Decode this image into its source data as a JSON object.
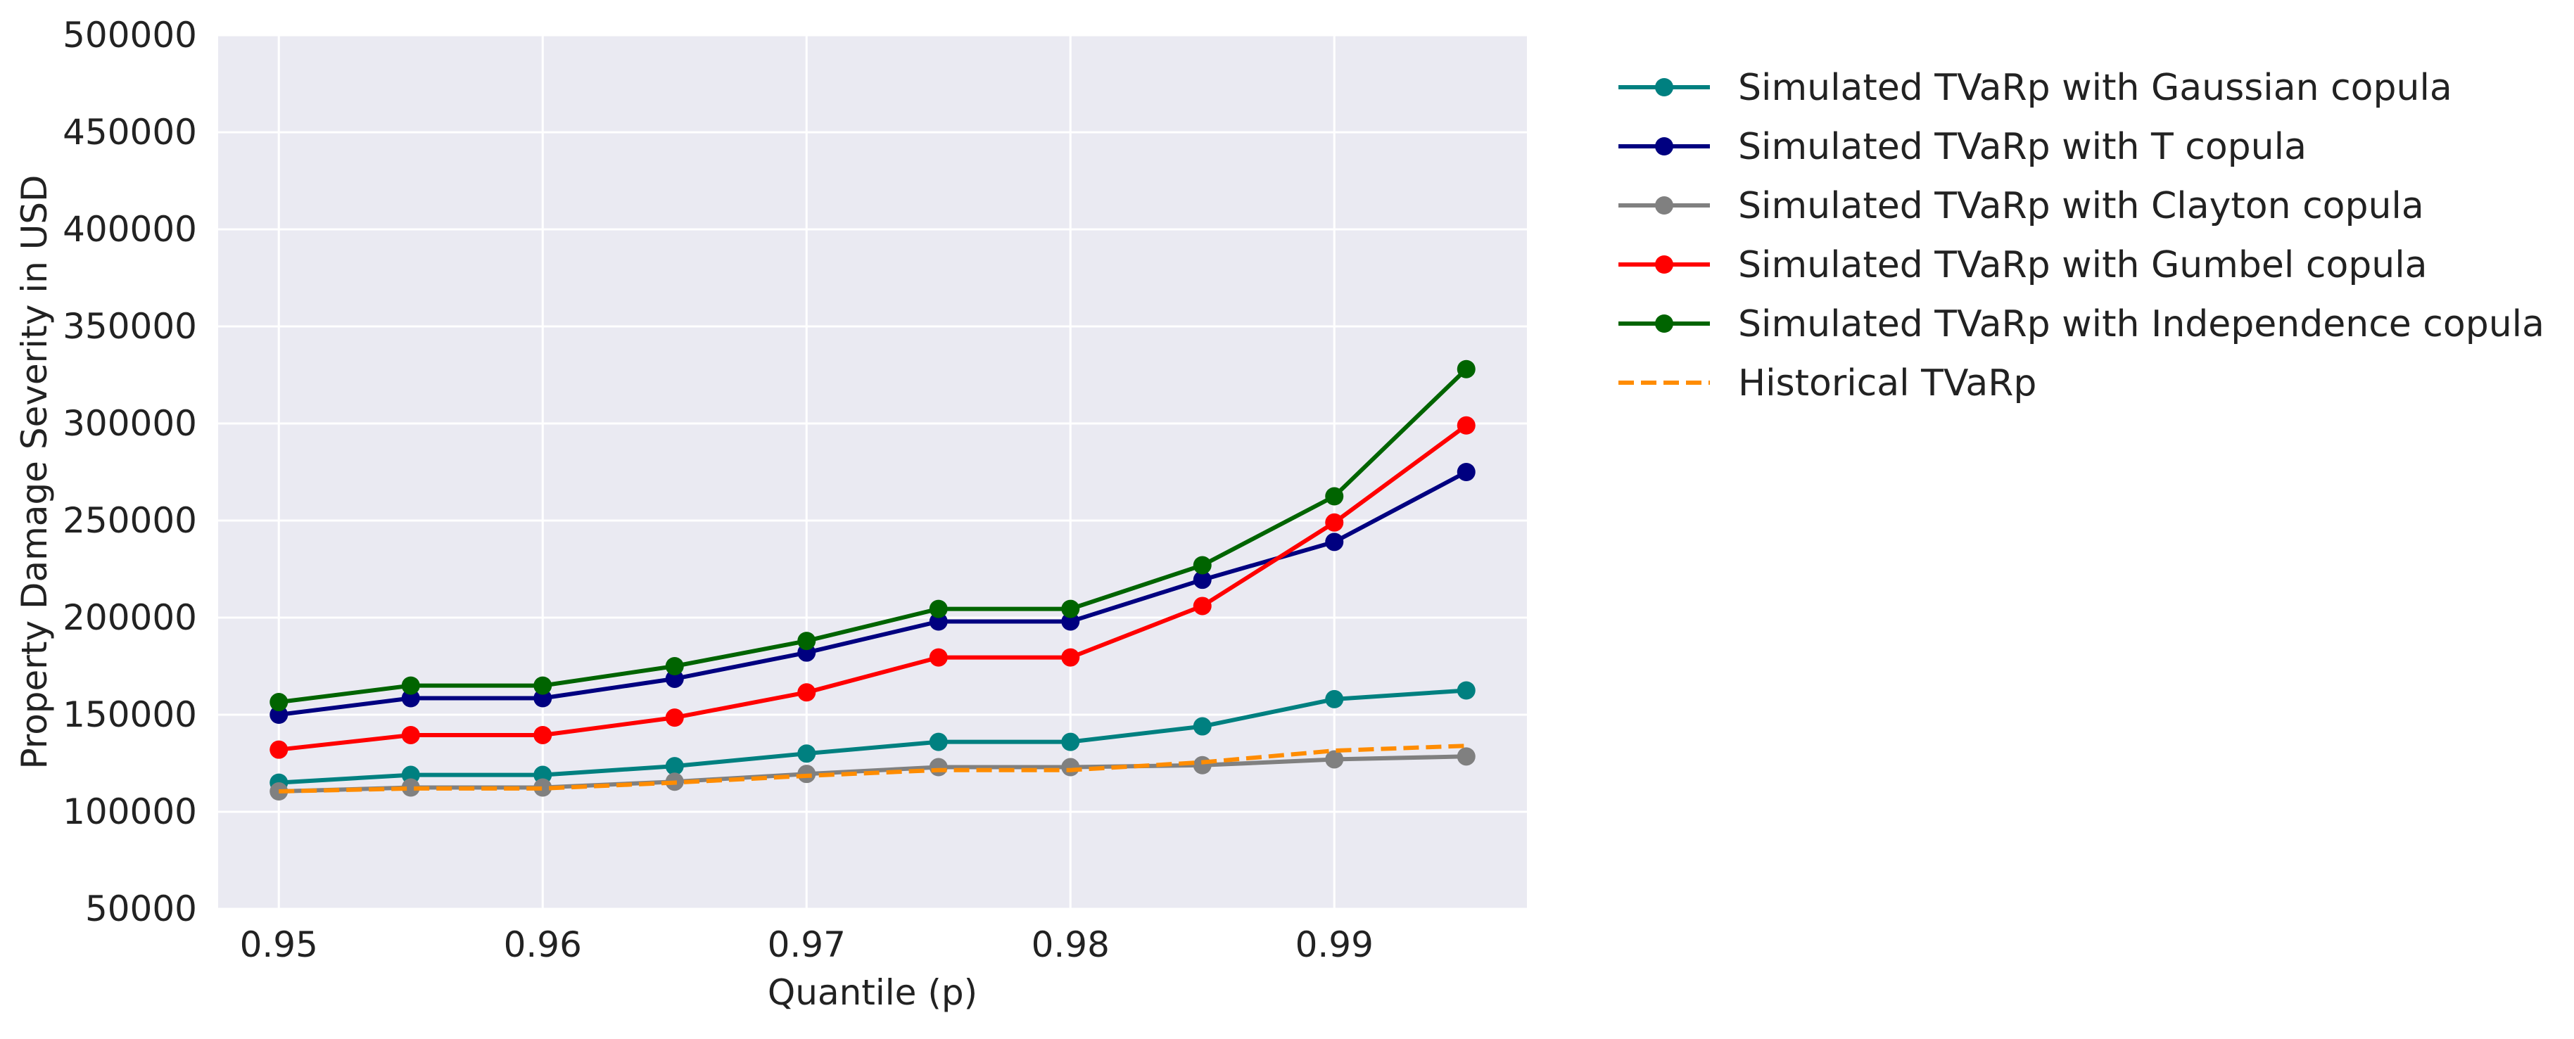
{
  "chart_data": {
    "type": "line",
    "title": "",
    "xlabel": "Quantile (p)",
    "ylabel": "Property Damage Severity in USD",
    "xlim": [
      0.9477,
      0.9973
    ],
    "ylim": [
      50000,
      500000
    ],
    "xticks": [
      0.95,
      0.96,
      0.97,
      0.98,
      0.99
    ],
    "xtick_labels": [
      "0.95",
      "0.96",
      "0.97",
      "0.98",
      "0.99"
    ],
    "yticks": [
      50000,
      100000,
      150000,
      200000,
      250000,
      300000,
      350000,
      400000,
      450000,
      500000
    ],
    "ytick_labels": [
      "50000",
      "100000",
      "150000",
      "200000",
      "250000",
      "300000",
      "350000",
      "400000",
      "450000",
      "500000"
    ],
    "grid": true,
    "legend_position": "outside-right",
    "x": [
      0.95,
      0.955,
      0.96,
      0.965,
      0.97,
      0.975,
      0.98,
      0.985,
      0.99,
      0.995
    ],
    "series": [
      {
        "name": "Simulated TVaRp with Gaussian copula",
        "color": "#008080",
        "style": "solid",
        "markers": true,
        "values": [
          115000,
          119000,
          119000,
          123500,
          130000,
          136000,
          136000,
          144000,
          158000,
          162500
        ]
      },
      {
        "name": "Simulated TVaRp with T copula",
        "color": "#000080",
        "style": "solid",
        "markers": true,
        "values": [
          150000,
          158500,
          158500,
          168500,
          182000,
          198000,
          198000,
          219500,
          239000,
          275000
        ]
      },
      {
        "name": "Simulated TVaRp with Clayton copula",
        "color": "#808080",
        "style": "solid",
        "markers": true,
        "values": [
          110500,
          112500,
          112500,
          115500,
          119500,
          123000,
          123000,
          124000,
          127000,
          128500
        ]
      },
      {
        "name": "Simulated TVaRp with Gumbel copula",
        "color": "#ff0000",
        "style": "solid",
        "markers": true,
        "values": [
          132000,
          139500,
          139500,
          148500,
          161500,
          179500,
          179500,
          206000,
          249000,
          299000
        ]
      },
      {
        "name": "Simulated TVaRp with Independence copula",
        "color": "#006400",
        "style": "solid",
        "markers": true,
        "values": [
          156500,
          165000,
          165000,
          175000,
          188000,
          204500,
          204500,
          227000,
          262500,
          328000
        ]
      },
      {
        "name": "Historical TVaRp",
        "color": "#ff8c00",
        "style": "dashed",
        "markers": false,
        "values": [
          110500,
          112000,
          112000,
          115000,
          118500,
          121500,
          121500,
          125500,
          131500,
          134000
        ]
      }
    ]
  }
}
